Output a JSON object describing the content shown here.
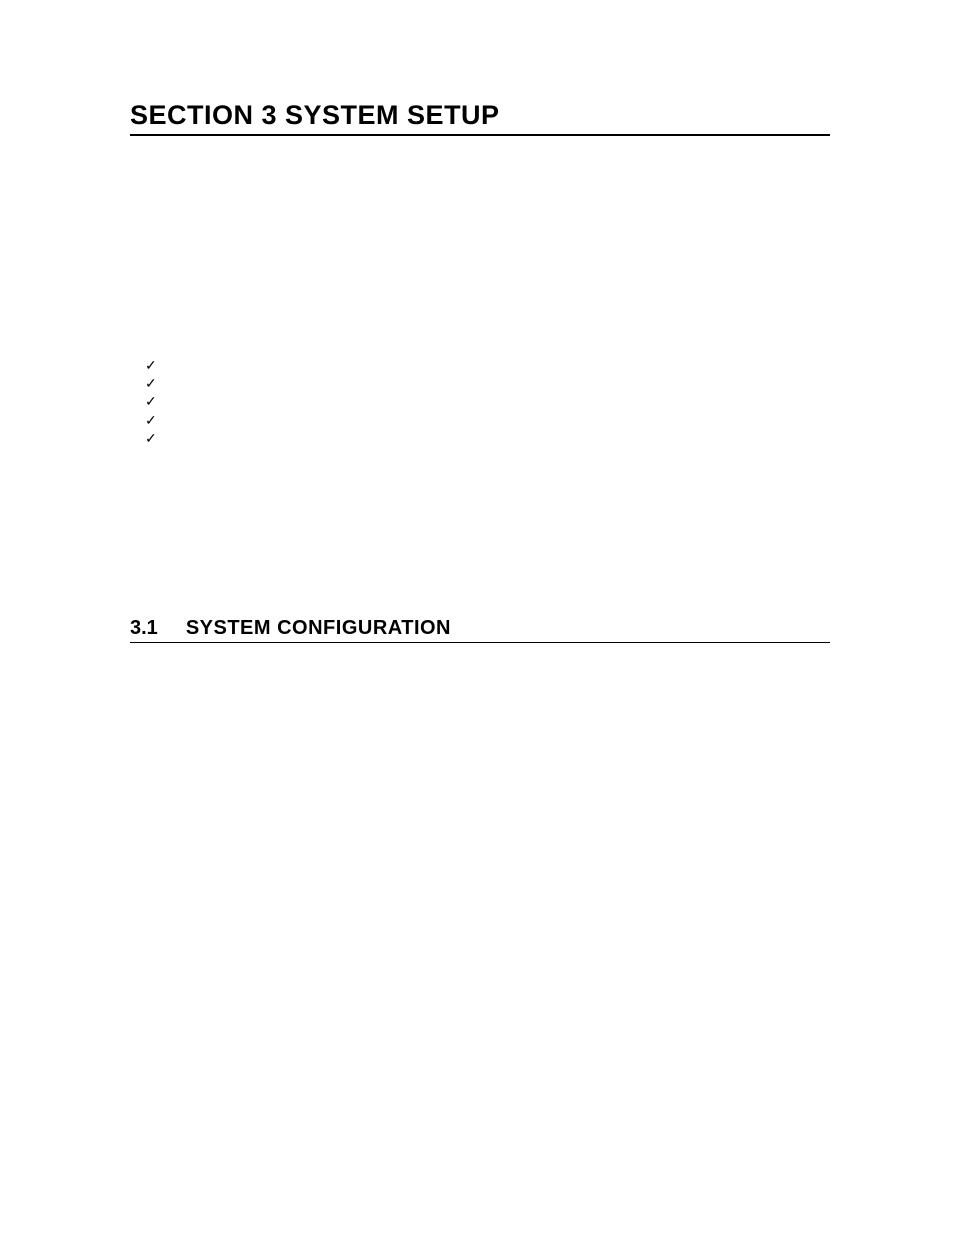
{
  "section": {
    "title": "SECTION 3   SYSTEM SETUP"
  },
  "checklist": {
    "items": [
      {
        "label": ""
      },
      {
        "label": ""
      },
      {
        "label": ""
      },
      {
        "label": ""
      },
      {
        "label": ""
      }
    ]
  },
  "subsection": {
    "number": "3.1",
    "title": "SYSTEM CONFIGURATION"
  },
  "colors": {
    "text": "#000000",
    "background": "#ffffff",
    "rule": "#000000"
  },
  "typography": {
    "section_title_fontsize": 27,
    "section_title_weight": "bold",
    "subsection_fontsize": 20,
    "subsection_weight": "bold",
    "check_fontsize": 14
  }
}
